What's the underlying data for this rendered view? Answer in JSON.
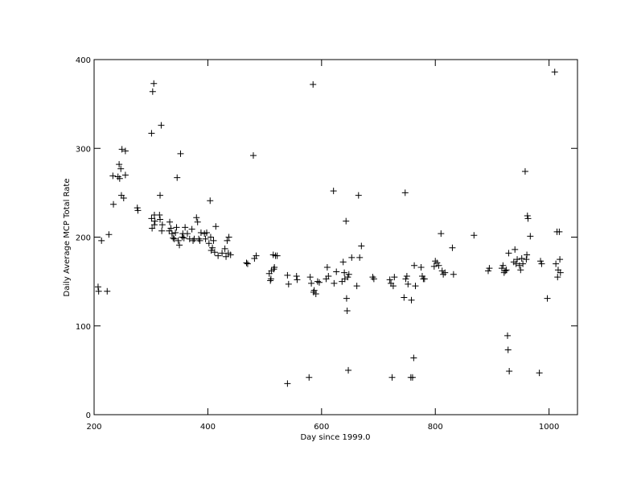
{
  "chart_data": {
    "type": "scatter",
    "x_label": "Day since 1999.0",
    "y_label": "Daily Average MCP Total Rate",
    "color": "#000000",
    "xlim": [
      200,
      1050
    ],
    "ylim": [
      0,
      400
    ],
    "xticks": [
      200,
      400,
      600,
      800,
      1000
    ],
    "yticks": [
      0,
      100,
      200,
      300,
      400
    ],
    "x": [
      207,
      208,
      213,
      223,
      226,
      233,
      234,
      242,
      244,
      245,
      247,
      248,
      249,
      252,
      255,
      255,
      276,
      277,
      301,
      301,
      302,
      303,
      305,
      306,
      306,
      307,
      315,
      316,
      316,
      318,
      319,
      320,
      332,
      333,
      335,
      337,
      339,
      341,
      343,
      345,
      346,
      348,
      350,
      352,
      355,
      356,
      358,
      360,
      364,
      368,
      372,
      374,
      376,
      380,
      382,
      384,
      386,
      388,
      394,
      396,
      398,
      402,
      404,
      405,
      406,
      408,
      410,
      412,
      414,
      418,
      425,
      430,
      432,
      434,
      436,
      437,
      440,
      468,
      470,
      480,
      482,
      485,
      508,
      510,
      511,
      512,
      515,
      516,
      517,
      519,
      522,
      540,
      540,
      542,
      556,
      557,
      578,
      580,
      582,
      585,
      586,
      587,
      590,
      593,
      596,
      608,
      610,
      612,
      621,
      622,
      626,
      636,
      638,
      640,
      641,
      643,
      644,
      645,
      646,
      647,
      648,
      653,
      662,
      665,
      667,
      670,
      690,
      692,
      720,
      722,
      724,
      726,
      728,
      745,
      747,
      748,
      750,
      752,
      757,
      758,
      760,
      762,
      763,
      765,
      775,
      777,
      779,
      781,
      798,
      800,
      803,
      806,
      810,
      812,
      814,
      817,
      830,
      832,
      868,
      893,
      895,
      917,
      919,
      921,
      923,
      925,
      927,
      928,
      929,
      930,
      938,
      940,
      942,
      944,
      948,
      950,
      952,
      954,
      958,
      960,
      961,
      962,
      963,
      967,
      983,
      985,
      987,
      997,
      1010,
      1012,
      1014,
      1015,
      1016,
      1018,
      1019,
      1020
    ],
    "y": [
      144,
      139,
      196,
      139,
      203,
      269,
      237,
      268,
      282,
      266,
      277,
      247,
      299,
      244,
      297,
      270,
      233,
      230,
      317,
      221,
      210,
      364,
      373,
      225,
      214,
      218,
      225,
      220,
      247,
      326,
      207,
      214,
      207,
      217,
      210,
      204,
      199,
      198,
      205,
      211,
      267,
      196,
      191,
      294,
      200,
      204,
      199,
      211,
      204,
      198,
      209,
      196,
      198,
      222,
      217,
      198,
      196,
      205,
      204,
      198,
      205,
      193,
      241,
      200,
      185,
      188,
      196,
      183,
      212,
      179,
      182,
      187,
      178,
      196,
      182,
      200,
      180,
      171,
      170,
      292,
      176,
      179,
      159,
      151,
      153,
      162,
      180,
      164,
      166,
      179,
      179,
      35,
      157,
      147,
      156,
      152,
      42,
      155,
      148,
      372,
      138,
      140,
      136,
      150,
      149,
      153,
      166,
      156,
      252,
      148,
      161,
      150,
      172,
      160,
      153,
      218,
      131,
      117,
      155,
      50,
      158,
      177,
      145,
      247,
      177,
      190,
      155,
      153,
      152,
      148,
      42,
      145,
      155,
      132,
      250,
      153,
      156,
      147,
      42,
      129,
      42,
      64,
      168,
      145,
      166,
      156,
      153,
      153,
      167,
      173,
      171,
      168,
      204,
      162,
      158,
      160,
      188,
      158,
      202,
      162,
      165,
      165,
      168,
      160,
      162,
      163,
      89,
      73,
      182,
      49,
      172,
      186,
      170,
      175,
      168,
      163,
      176,
      170,
      274,
      175,
      180,
      224,
      221,
      201,
      47,
      173,
      170,
      131,
      386,
      170,
      206,
      155,
      163,
      206,
      175,
      160
    ]
  }
}
